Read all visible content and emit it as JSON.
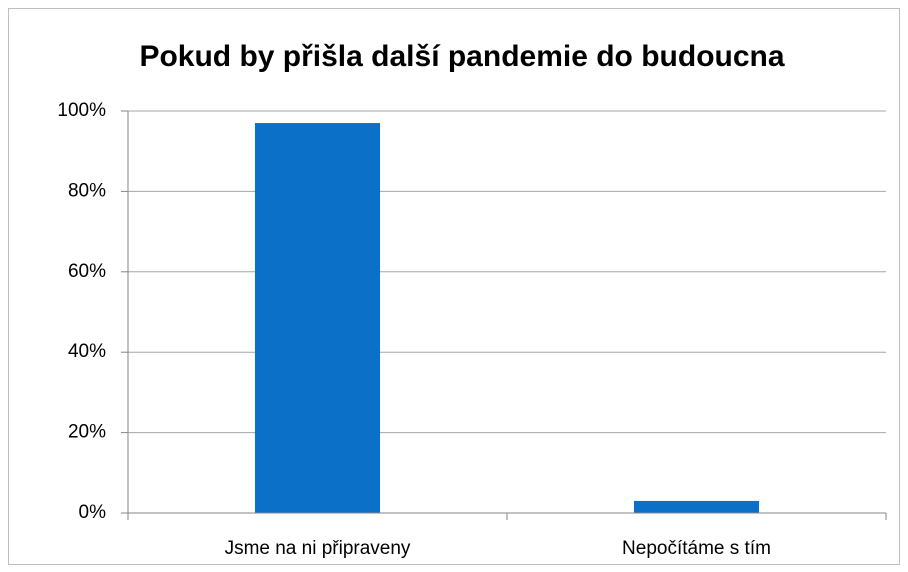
{
  "chart_data": {
    "type": "bar",
    "title": "Pokud by přišla další pandemie do budoucna",
    "categories": [
      "Jsme na ni připraveny",
      "Nepočítáme s tím"
    ],
    "values": [
      97,
      3
    ],
    "color": "#0a70c8",
    "ylim": [
      0,
      100
    ],
    "yticks": [
      {
        "value": 0,
        "label": "0%"
      },
      {
        "value": 20,
        "label": "20%"
      },
      {
        "value": 40,
        "label": "40%"
      },
      {
        "value": 60,
        "label": "60%"
      },
      {
        "value": 80,
        "label": "80%"
      },
      {
        "value": 100,
        "label": "100%"
      }
    ],
    "grid": true
  }
}
